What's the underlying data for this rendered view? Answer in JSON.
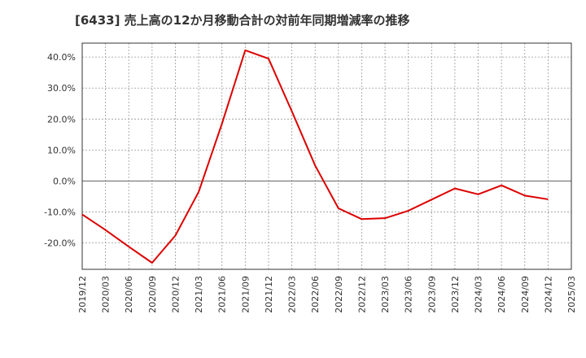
{
  "title": "[6433]  売上高の12か月移動合計の対前年同期増減率の推移",
  "colors": {
    "line": "#dd0000",
    "grid": "#999999",
    "frame": "#333333",
    "zero": "#666666"
  },
  "chart_data": {
    "type": "line",
    "title": "[6433]  売上高の12か月移動合計の対前年同期増減率の推移",
    "xlabel": "",
    "ylabel": "",
    "ylim": [
      -28.5,
      44.5
    ],
    "grid": true,
    "y_ticks": [
      40,
      30,
      20,
      10,
      0,
      -10,
      -20
    ],
    "y_tick_labels": [
      "40.0%",
      "30.0%",
      "20.0%",
      "10.0%",
      "0.0%",
      "-10.0%",
      "-20.0%"
    ],
    "categories": [
      "2019/12",
      "2020/03",
      "2020/06",
      "2020/09",
      "2020/12",
      "2021/03",
      "2021/06",
      "2021/09",
      "2021/12",
      "2022/03",
      "2022/06",
      "2022/09",
      "2022/12",
      "2023/03",
      "2023/06",
      "2023/09",
      "2023/12",
      "2024/03",
      "2024/06",
      "2024/09",
      "2024/12",
      "2025/03"
    ],
    "series": [
      {
        "name": "売上高の12か月移動合計の対前年同期増減率",
        "values": [
          -10.8,
          -15.8,
          -21.2,
          -26.4,
          -17.6,
          -3.5,
          18.5,
          42.2,
          39.5,
          22.5,
          5.0,
          -8.8,
          -12.3,
          -12.0,
          -9.6,
          -6.0,
          -2.4,
          -4.3,
          -1.4,
          -4.7,
          -5.9,
          null
        ]
      }
    ]
  }
}
